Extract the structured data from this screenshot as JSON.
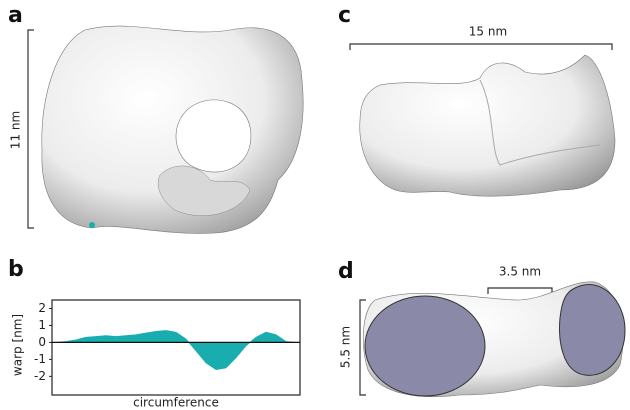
{
  "panels": [
    {
      "label": "a",
      "scale_bar": "11 nm"
    },
    {
      "label": "b"
    },
    {
      "label": "c",
      "scale_bar": "15 nm"
    },
    {
      "label": "d",
      "scale_bars": [
        "3.5 nm",
        "5.5 nm"
      ]
    }
  ],
  "chart_data": {
    "type": "area",
    "xlabel": "circumference",
    "ylabel": "warp [nm]",
    "color": "#19adb0",
    "values": [
      0,
      0.05,
      0.15,
      0.3,
      0.35,
      0.4,
      0.35,
      0.4,
      0.45,
      0.55,
      0.65,
      0.7,
      0.6,
      0.2,
      -0.5,
      -1.2,
      -1.6,
      -1.5,
      -0.9,
      -0.2,
      0.3,
      0.6,
      0.45,
      0.05,
      0
    ],
    "ylim": [
      -3.1,
      2.5
    ],
    "yticks": [
      2,
      1,
      0,
      -1,
      -2
    ]
  }
}
